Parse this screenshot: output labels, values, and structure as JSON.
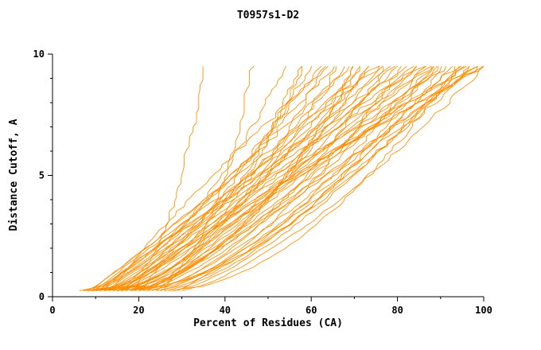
{
  "chart_data": {
    "type": "line",
    "title": "T0957s1-D2",
    "xlabel": "Percent of Residues (CA)",
    "ylabel": "Distance Cutoff, A",
    "xlim": [
      0,
      100
    ],
    "ylim": [
      0,
      10
    ],
    "x_major_ticks": [
      0,
      20,
      40,
      60,
      80,
      100
    ],
    "x_minor_step": 10,
    "y_major_ticks": [
      0,
      5,
      10
    ],
    "y_minor_step": 1,
    "grid": "off",
    "legend": "none",
    "line_color": "#ff8c00",
    "axis_color": "#000000",
    "background": "#ffffff",
    "description": "Fan of monotonically increasing per-model GDT curves: distance cutoff (A) vs percent of CA residues fit under that cutoff. Each curve starts near y=0.25 at x=x0 and reaches y=9.5 at x=x1 following x = x0 + (x1 - x0) * t^p with t = (y - 0.25) / 9.25.",
    "y_start": 0.25,
    "y_end": 9.5,
    "curves": [
      {
        "x0": 7,
        "x1": 35,
        "p": 0.3
      },
      {
        "x0": 9,
        "x1": 46,
        "p": 0.26
      },
      {
        "x0": 6,
        "x1": 54,
        "p": 0.55
      },
      {
        "x0": 8,
        "x1": 58,
        "p": 0.48
      },
      {
        "x0": 10,
        "x1": 60,
        "p": 0.62
      },
      {
        "x0": 7,
        "x1": 62,
        "p": 0.7
      },
      {
        "x0": 12,
        "x1": 63,
        "p": 0.52
      },
      {
        "x0": 9,
        "x1": 65,
        "p": 0.8
      },
      {
        "x0": 14,
        "x1": 66,
        "p": 0.58
      },
      {
        "x0": 11,
        "x1": 68,
        "p": 0.72
      },
      {
        "x0": 8,
        "x1": 69,
        "p": 0.9
      },
      {
        "x0": 13,
        "x1": 70,
        "p": 0.65
      },
      {
        "x0": 16,
        "x1": 71,
        "p": 0.55
      },
      {
        "x0": 10,
        "x1": 72,
        "p": 0.85
      },
      {
        "x0": 18,
        "x1": 73,
        "p": 0.6
      },
      {
        "x0": 12,
        "x1": 74,
        "p": 0.75
      },
      {
        "x0": 9,
        "x1": 75,
        "p": 1.0
      },
      {
        "x0": 15,
        "x1": 76,
        "p": 0.68
      },
      {
        "x0": 20,
        "x1": 77,
        "p": 0.58
      },
      {
        "x0": 11,
        "x1": 78,
        "p": 0.9
      },
      {
        "x0": 17,
        "x1": 79,
        "p": 0.72
      },
      {
        "x0": 13,
        "x1": 80,
        "p": 0.82
      },
      {
        "x0": 22,
        "x1": 81,
        "p": 0.6
      },
      {
        "x0": 10,
        "x1": 82,
        "p": 1.05
      },
      {
        "x0": 16,
        "x1": 83,
        "p": 0.78
      },
      {
        "x0": 19,
        "x1": 84,
        "p": 0.7
      },
      {
        "x0": 12,
        "x1": 85,
        "p": 0.95
      },
      {
        "x0": 24,
        "x1": 86,
        "p": 0.62
      },
      {
        "x0": 14,
        "x1": 87,
        "p": 0.88
      },
      {
        "x0": 21,
        "x1": 88,
        "p": 0.74
      },
      {
        "x0": 11,
        "x1": 89,
        "p": 1.1
      },
      {
        "x0": 18,
        "x1": 90,
        "p": 0.8
      },
      {
        "x0": 26,
        "x1": 91,
        "p": 0.66
      },
      {
        "x0": 13,
        "x1": 92,
        "p": 1.0
      },
      {
        "x0": 23,
        "x1": 93,
        "p": 0.76
      },
      {
        "x0": 15,
        "x1": 94,
        "p": 0.92
      },
      {
        "x0": 28,
        "x1": 95,
        "p": 0.7
      },
      {
        "x0": 17,
        "x1": 96,
        "p": 1.05
      },
      {
        "x0": 20,
        "x1": 97,
        "p": 0.85
      },
      {
        "x0": 25,
        "x1": 98,
        "p": 0.78
      },
      {
        "x0": 12,
        "x1": 99,
        "p": 1.2
      },
      {
        "x0": 30,
        "x1": 100,
        "p": 0.72
      },
      {
        "x0": 16,
        "x1": 100,
        "p": 1.1
      },
      {
        "x0": 22,
        "x1": 99,
        "p": 0.95
      },
      {
        "x0": 8,
        "x1": 57,
        "p": 0.4
      },
      {
        "x0": 19,
        "x1": 86,
        "p": 1.3
      },
      {
        "x0": 27,
        "x1": 94,
        "p": 0.55
      },
      {
        "x0": 14,
        "x1": 64,
        "p": 1.15
      },
      {
        "x0": 24,
        "x1": 90,
        "p": 1.0
      },
      {
        "x0": 10,
        "x1": 70,
        "p": 0.45
      },
      {
        "x0": 29,
        "x1": 97,
        "p": 0.88
      },
      {
        "x0": 21,
        "x1": 76,
        "p": 1.2
      },
      {
        "x0": 15,
        "x1": 88,
        "p": 0.5
      },
      {
        "x0": 18,
        "x1": 95,
        "p": 0.6
      },
      {
        "x0": 26,
        "x1": 100,
        "p": 1.3
      }
    ]
  }
}
